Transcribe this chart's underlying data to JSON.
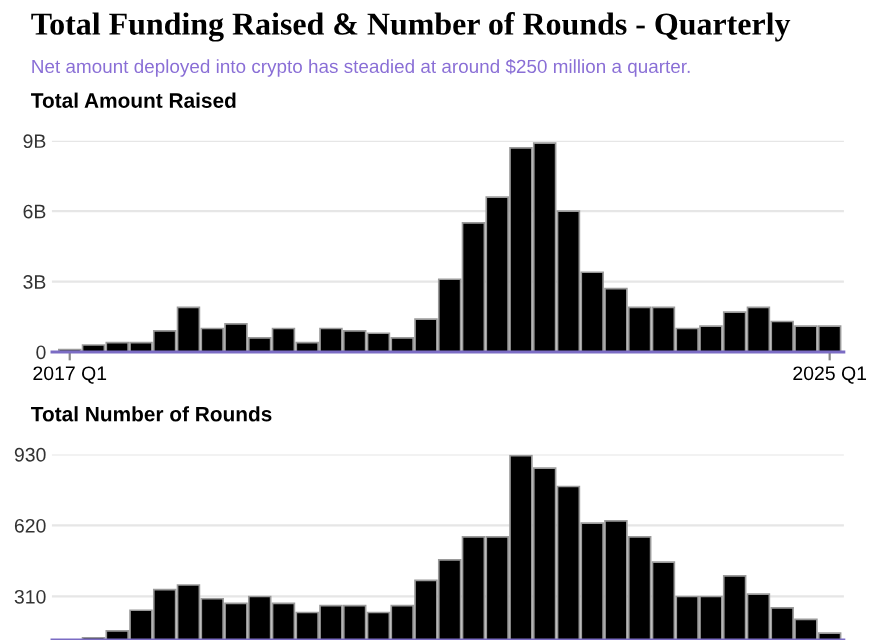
{
  "chart_data": [
    {
      "type": "bar",
      "title": "Total Funding Raised & Number of Rounds - Quarterly",
      "subtitle": "Net amount deployed into crypto has steadied at around $250 million a quarter.",
      "ylabel": "Total Amount Raised",
      "categories": [
        "2017 Q1",
        null,
        null,
        null,
        null,
        null,
        null,
        null,
        null,
        null,
        null,
        null,
        null,
        null,
        null,
        null,
        null,
        null,
        null,
        null,
        null,
        null,
        null,
        null,
        null,
        null,
        null,
        null,
        null,
        null,
        null,
        null,
        "2025 Q1"
      ],
      "series": [
        {
          "color": "#000000",
          "values": [
            0.1,
            0.3,
            0.4,
            0.4,
            0.9,
            1.9,
            1.0,
            1.2,
            0.6,
            1.0,
            0.4,
            1.0,
            0.9,
            0.8,
            0.6,
            1.4,
            3.1,
            5.5,
            6.6,
            8.7,
            8.9,
            6.0,
            3.4,
            2.7,
            1.9,
            1.9,
            1.0,
            1.1,
            1.7,
            1.9,
            1.3,
            1.1,
            1.1
          ]
        }
      ],
      "ylim": [
        0,
        9
      ],
      "yticks": [
        {
          "value": 0,
          "label": "0"
        },
        {
          "value": 3,
          "label": "3B"
        },
        {
          "value": 6,
          "label": "6B"
        },
        {
          "value": 9,
          "label": "9B"
        }
      ],
      "grid": "y"
    },
    {
      "type": "bar",
      "ylabel": "Total Number of Rounds",
      "categories": [
        null,
        null,
        null,
        null,
        null,
        null,
        null,
        null,
        null,
        null,
        null,
        null,
        null,
        null,
        null,
        null,
        null,
        null,
        null,
        null,
        null,
        null,
        null,
        null,
        null,
        null,
        null,
        null,
        null,
        null,
        null,
        null,
        null
      ],
      "series": [
        {
          "color": "#000000",
          "values": [
            null,
            130,
            160,
            250,
            340,
            360,
            300,
            280,
            310,
            280,
            240,
            270,
            270,
            240,
            270,
            380,
            470,
            570,
            570,
            925,
            870,
            790,
            630,
            640,
            570,
            460,
            310,
            310,
            400,
            320,
            260,
            210,
            150
          ]
        }
      ],
      "ylim": [
        120,
        930
      ],
      "yticks": [
        310,
        620,
        930
      ],
      "grid": "y",
      "tick_labels": "y"
    }
  ]
}
